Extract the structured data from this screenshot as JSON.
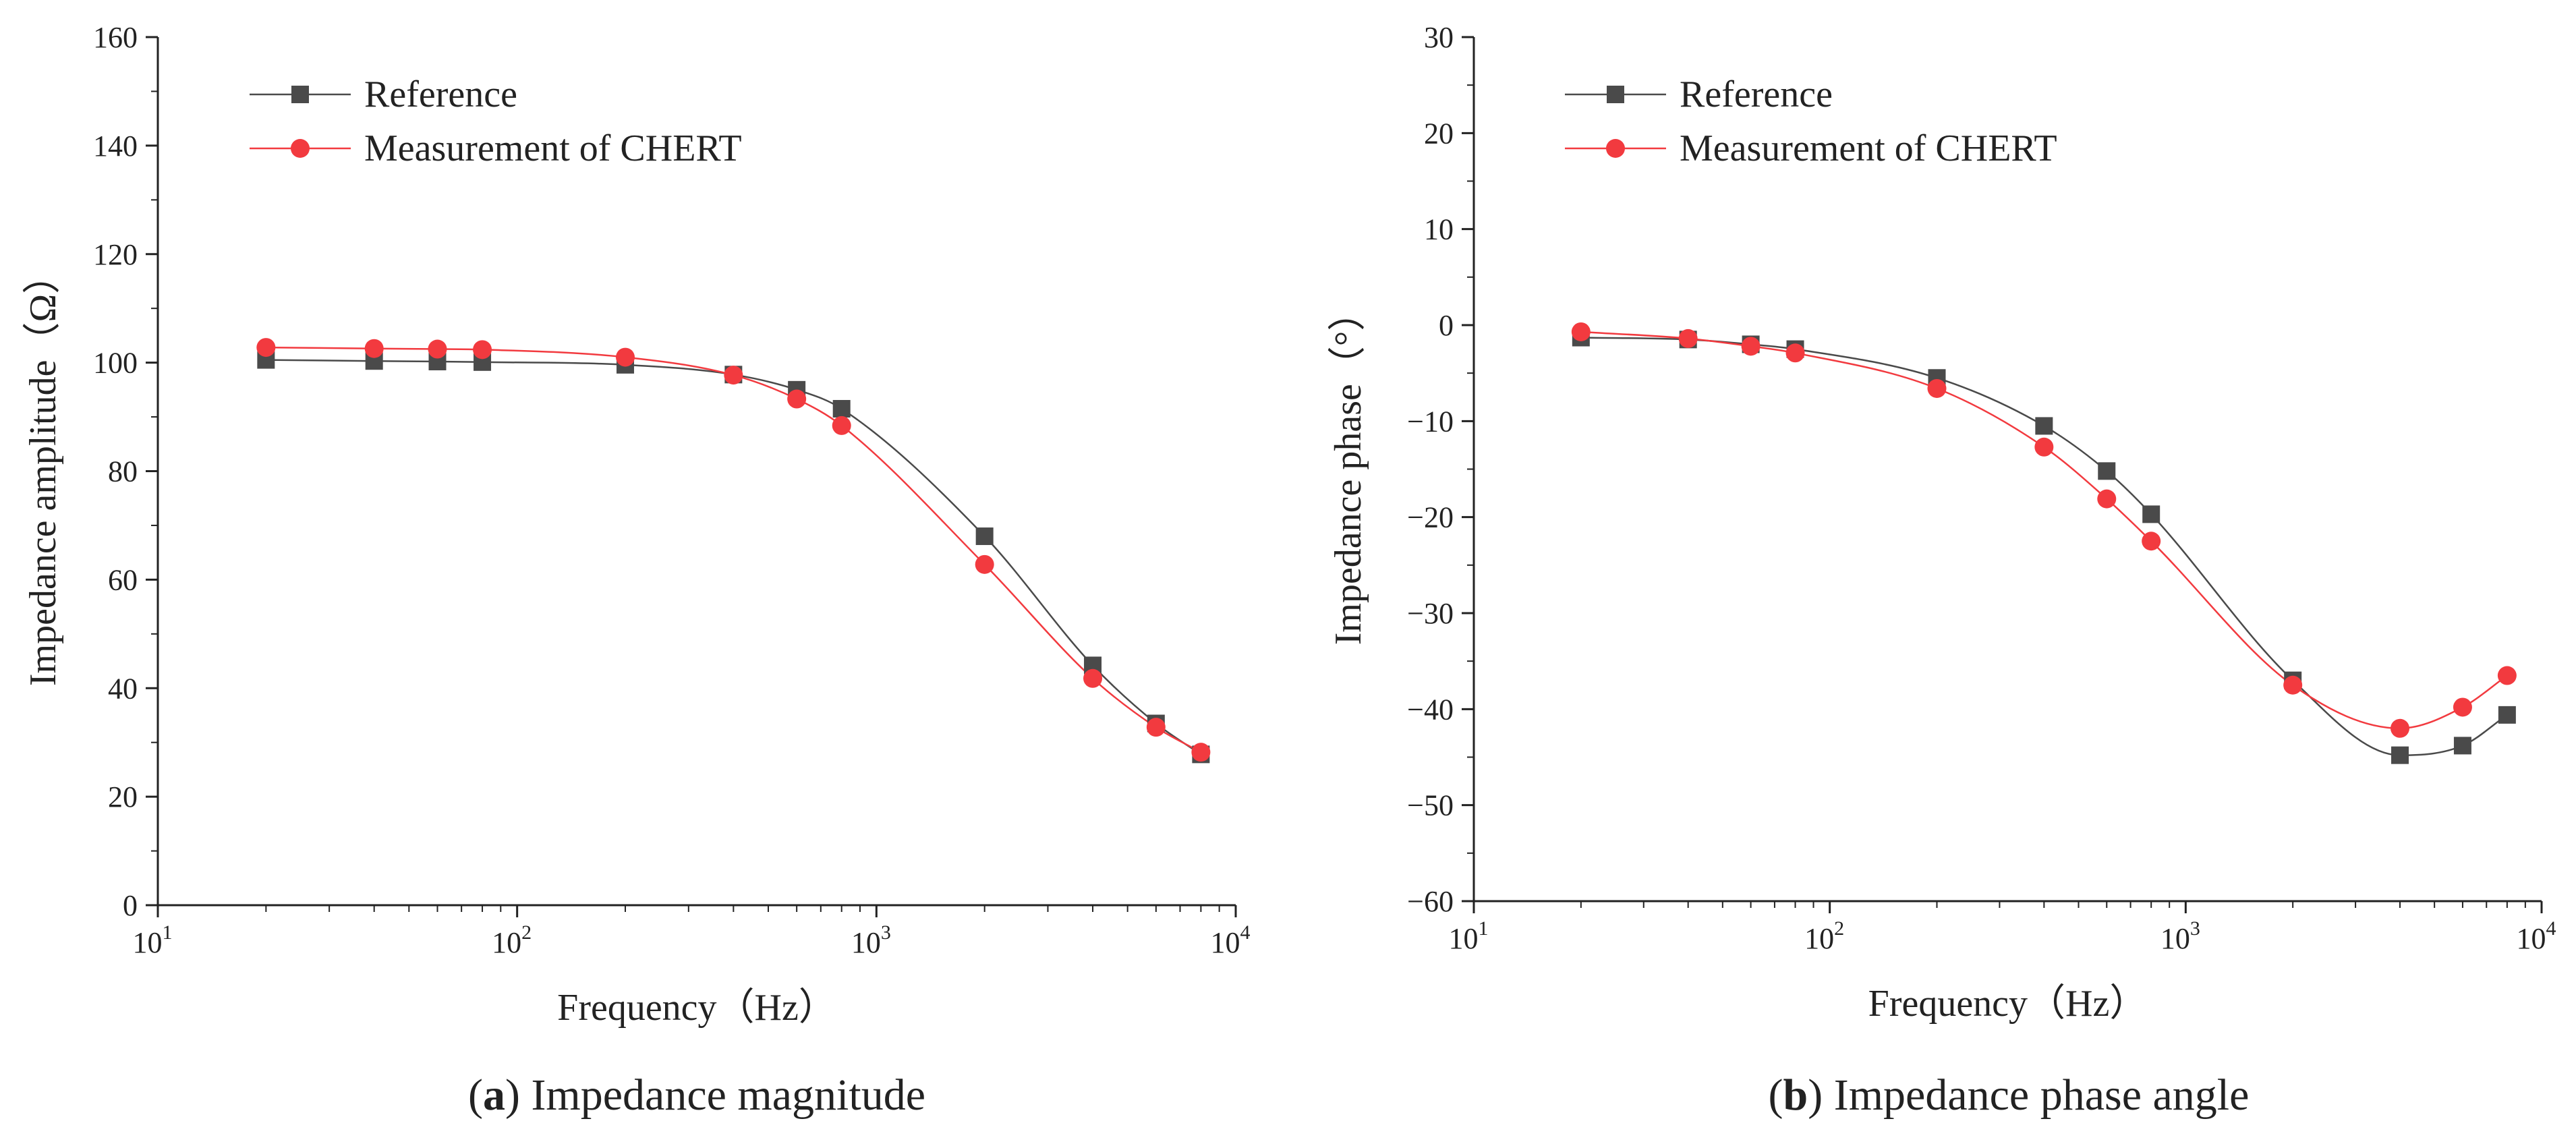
{
  "colors": {
    "reference": "#4a4a4a",
    "measurement": "#f23a3f",
    "axis": "#222222"
  },
  "chart_data": [
    {
      "type": "line",
      "panel": "a",
      "xscale": "log",
      "xlim": [
        10,
        10000
      ],
      "ylim": [
        0,
        160
      ],
      "xticks": [
        10,
        100,
        1000,
        10000
      ],
      "xtick_labels": [
        [
          "10",
          "1"
        ],
        [
          "10",
          "2"
        ],
        [
          "10",
          "3"
        ],
        [
          "10",
          "4"
        ]
      ],
      "yticks": [
        0,
        20,
        40,
        60,
        80,
        100,
        120,
        140,
        160
      ],
      "ytick_labels": [
        "0",
        "20",
        "40",
        "60",
        "80",
        "100",
        "120",
        "140",
        "160"
      ],
      "xlabel": "Frequency（Hz）",
      "ylabel": "Impedance amplitude（Ω）",
      "caption_letter": "a",
      "caption_text": " Impedance magnitude",
      "legend": [
        "Reference",
        "Measurement of CHERT"
      ],
      "x": [
        20,
        40,
        60,
        80,
        200,
        400,
        600,
        800,
        2000,
        4000,
        6000,
        8000
      ],
      "series": [
        {
          "name": "Reference",
          "marker": "square",
          "values": [
            100.5,
            100.3,
            100.2,
            100.1,
            99.6,
            97.8,
            95.0,
            91.5,
            68.0,
            44.2,
            33.5,
            27.8
          ]
        },
        {
          "name": "Measurement of CHERT",
          "marker": "circle",
          "values": [
            102.8,
            102.6,
            102.5,
            102.4,
            101.0,
            97.7,
            93.3,
            88.4,
            62.8,
            41.8,
            32.8,
            28.2
          ]
        }
      ]
    },
    {
      "type": "line",
      "panel": "b",
      "xscale": "log",
      "xlim": [
        10,
        10000
      ],
      "ylim": [
        -60,
        30
      ],
      "xticks": [
        10,
        100,
        1000,
        10000
      ],
      "xtick_labels": [
        [
          "10",
          "1"
        ],
        [
          "10",
          "2"
        ],
        [
          "10",
          "3"
        ],
        [
          "10",
          "4"
        ]
      ],
      "yticks": [
        -60,
        -50,
        -40,
        -30,
        -20,
        -10,
        0,
        10,
        20,
        30
      ],
      "ytick_labels": [
        "−60",
        "−50",
        "−40",
        "−30",
        "−20",
        "−10",
        "0",
        "10",
        "20",
        "30"
      ],
      "xlabel": "Frequency（Hz）",
      "ylabel": "Impedance phase（°）",
      "caption_letter": "b",
      "caption_text": " Impedance phase angle",
      "legend": [
        "Reference",
        "Measurement of CHERT"
      ],
      "x": [
        20,
        40,
        60,
        80,
        200,
        400,
        600,
        800,
        2000,
        4000,
        6000,
        8000
      ],
      "series": [
        {
          "name": "Reference",
          "marker": "square",
          "values": [
            -1.3,
            -1.5,
            -2.0,
            -2.5,
            -5.5,
            -10.5,
            -15.2,
            -19.7,
            -37.0,
            -44.8,
            -43.8,
            -40.6
          ]
        },
        {
          "name": "Measurement of CHERT",
          "marker": "circle",
          "values": [
            -0.7,
            -1.4,
            -2.2,
            -2.9,
            -6.6,
            -12.7,
            -18.1,
            -22.5,
            -37.5,
            -42.0,
            -39.8,
            -36.5
          ]
        }
      ]
    }
  ]
}
